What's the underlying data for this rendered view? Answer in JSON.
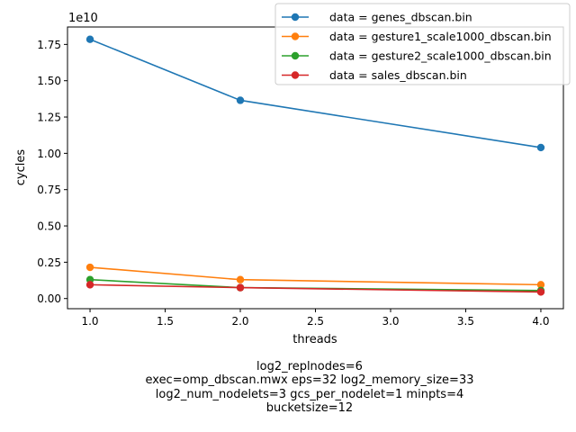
{
  "chart_data": {
    "type": "line",
    "xlabel": "threads",
    "ylabel": "cycles",
    "y_offset_label": "1e10",
    "xlim": [
      0.85,
      4.15
    ],
    "ylim": [
      -0.07,
      1.87
    ],
    "y_scale_factor": 10000000000,
    "x_ticks": [
      "1.0",
      "1.5",
      "2.0",
      "2.5",
      "3.0",
      "3.5",
      "4.0"
    ],
    "y_ticks": [
      "0.00",
      "0.25",
      "0.50",
      "0.75",
      "1.00",
      "1.25",
      "1.50",
      "1.75"
    ],
    "x": [
      1,
      2,
      4
    ],
    "series": [
      {
        "name": "data = genes_dbscan.bin",
        "color": "#1f77b4",
        "values": [
          1.785,
          1.365,
          1.04
        ]
      },
      {
        "name": "data = gesture1_scale1000_dbscan.bin",
        "color": "#ff7f0e",
        "values": [
          0.215,
          0.13,
          0.095
        ]
      },
      {
        "name": "data = gesture2_scale1000_dbscan.bin",
        "color": "#2ca02c",
        "values": [
          0.13,
          0.075,
          0.055
        ]
      },
      {
        "name": "data = sales_dbscan.bin",
        "color": "#d62728",
        "values": [
          0.095,
          0.075,
          0.045
        ]
      }
    ],
    "legend_position": "top-right",
    "grid": false
  },
  "footnote": {
    "line1": "log2_replnodes=6",
    "line2": "exec=omp_dbscan.mwx   eps=32   log2_memory_size=33",
    "line3": "log2_num_nodelets=3   gcs_per_nodelet=1   minpts=4",
    "line4": "bucketsize=12"
  }
}
